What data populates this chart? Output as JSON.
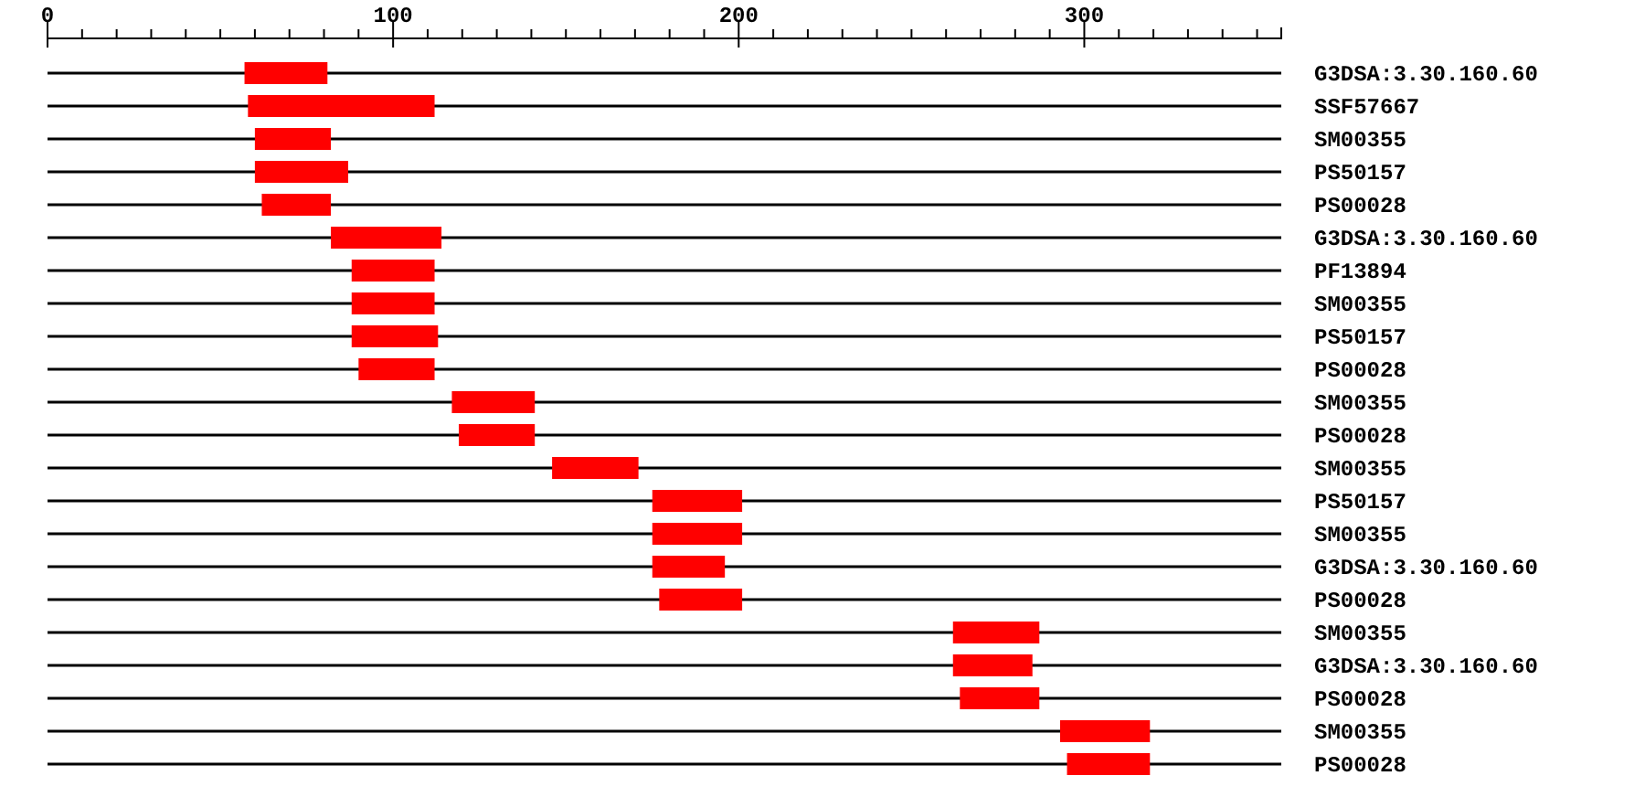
{
  "chart_data": {
    "type": "bar",
    "orientation": "horizontal",
    "grid": "y",
    "categories": [
      "G3DSA:3.30.160.60",
      "SSF57667",
      "SM00355",
      "PS50157",
      "PS00028",
      "G3DSA:3.30.160.60",
      "PF13894",
      "SM00355",
      "PS50157",
      "PS00028",
      "SM00355",
      "PS00028",
      "SM00355",
      "PS50157",
      "SM00355",
      "G3DSA:3.30.160.60",
      "PS00028",
      "SM00355",
      "G3DSA:3.30.160.60",
      "PS00028",
      "SM00355",
      "PS00028"
    ],
    "base": [
      57,
      58,
      60,
      60,
      62,
      82,
      88,
      88,
      88,
      90,
      117,
      119,
      146,
      175,
      175,
      175,
      177,
      262,
      262,
      264,
      293,
      295
    ],
    "values": [
      24,
      54,
      22,
      27,
      20,
      32,
      24,
      24,
      25,
      22,
      24,
      22,
      25,
      26,
      26,
      21,
      24,
      25,
      23,
      23,
      26,
      24
    ],
    "color": "#ff0000",
    "xlim": [
      0,
      357
    ],
    "xticks": [
      0,
      {
        "value": 10,
        "label": null
      },
      {
        "value": 20,
        "label": null
      },
      {
        "value": 30,
        "label": null
      },
      {
        "value": 40,
        "label": null
      },
      {
        "value": 50,
        "label": null
      },
      {
        "value": 60,
        "label": null
      },
      {
        "value": 70,
        "label": null
      },
      {
        "value": 80,
        "label": null
      },
      {
        "value": 90,
        "label": null
      },
      100,
      {
        "value": 110,
        "label": null
      },
      {
        "value": 120,
        "label": null
      },
      {
        "value": 130,
        "label": null
      },
      {
        "value": 140,
        "label": null
      },
      {
        "value": 150,
        "label": null
      },
      {
        "value": 160,
        "label": null
      },
      {
        "value": 170,
        "label": null
      },
      {
        "value": 180,
        "label": null
      },
      {
        "value": 190,
        "label": null
      },
      200,
      {
        "value": 210,
        "label": null
      },
      {
        "value": 220,
        "label": null
      },
      {
        "value": 230,
        "label": null
      },
      {
        "value": 240,
        "label": null
      },
      {
        "value": 250,
        "label": null
      },
      {
        "value": 260,
        "label": null
      },
      {
        "value": 270,
        "label": null
      },
      {
        "value": 280,
        "label": null
      },
      {
        "value": 290,
        "label": null
      },
      300,
      {
        "value": 310,
        "label": null
      },
      {
        "value": 320,
        "label": null
      },
      {
        "value": 330,
        "label": null
      },
      {
        "value": 340,
        "label": null
      },
      {
        "value": 350,
        "label": null
      }
    ]
  }
}
